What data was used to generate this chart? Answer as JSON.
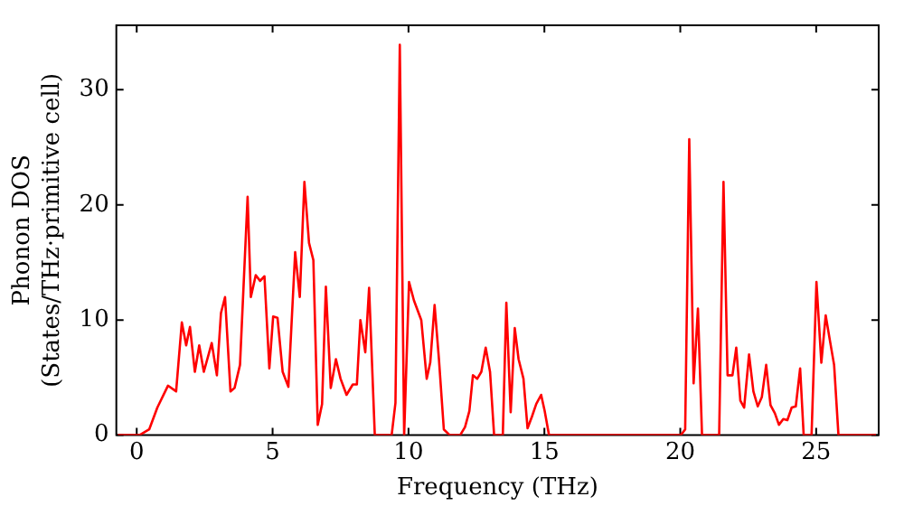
{
  "chart_data": {
    "type": "line",
    "xlabel": "Frequency (THz)",
    "ylabel": "Phonon DOS\n(States/THz·primitive cell)",
    "xlim": [
      -0.75,
      27.3
    ],
    "ylim": [
      0,
      35.6
    ],
    "xticks": [
      0,
      5,
      10,
      15,
      20,
      25
    ],
    "yticks": [
      0,
      10,
      20,
      30
    ],
    "grid": false,
    "legend": false,
    "marker": "none",
    "line_style": "solid",
    "x": [
      -0.69,
      0.1,
      0.46,
      0.76,
      1.15,
      1.45,
      1.66,
      1.82,
      1.96,
      2.14,
      2.3,
      2.47,
      2.76,
      2.95,
      3.1,
      3.25,
      3.45,
      3.6,
      3.8,
      4.08,
      4.2,
      4.38,
      4.54,
      4.7,
      4.88,
      5.02,
      5.18,
      5.37,
      5.58,
      5.83,
      6.0,
      6.17,
      6.34,
      6.5,
      6.66,
      6.82,
      6.96,
      7.14,
      7.33,
      7.5,
      7.72,
      7.95,
      8.1,
      8.23,
      8.41,
      8.55,
      8.76,
      9.38,
      9.52,
      9.68,
      9.84,
      10.02,
      10.2,
      10.47,
      10.67,
      10.8,
      10.96,
      11.12,
      11.3,
      11.52,
      11.9,
      12.08,
      12.24,
      12.37,
      12.53,
      12.68,
      12.84,
      13.0,
      13.15,
      13.47,
      13.6,
      13.76,
      13.91,
      14.05,
      14.23,
      14.38,
      14.54,
      14.7,
      14.88,
      15.01,
      15.17,
      20.02,
      20.18,
      20.33,
      20.49,
      20.65,
      20.8,
      21.43,
      21.59,
      21.74,
      21.92,
      22.06,
      22.21,
      22.35,
      22.53,
      22.69,
      22.85,
      23.0,
      23.16,
      23.32,
      23.48,
      23.63,
      23.79,
      23.94,
      24.1,
      24.25,
      24.41,
      24.54,
      24.83,
      25.01,
      25.19,
      25.35,
      25.5,
      25.66,
      25.82,
      27.2
    ],
    "series": [
      {
        "color": "#ff0000",
        "values": [
          0,
          0,
          0.5,
          2.4,
          4.3,
          3.8,
          9.8,
          7.8,
          9.4,
          5.5,
          7.8,
          5.5,
          8.0,
          5.2,
          10.6,
          12.0,
          3.8,
          4.1,
          6.1,
          20.7,
          12.0,
          13.9,
          13.4,
          13.8,
          5.8,
          10.3,
          10.2,
          5.5,
          4.2,
          15.9,
          12.0,
          22.0,
          16.7,
          15.2,
          0.9,
          2.7,
          12.9,
          4.1,
          6.6,
          4.9,
          3.5,
          4.4,
          4.4,
          10.0,
          7.2,
          12.8,
          0,
          0,
          2.8,
          33.9,
          0,
          13.3,
          11.7,
          10.0,
          4.9,
          6.3,
          11.3,
          6.6,
          0.5,
          0,
          0,
          0.7,
          2.1,
          5.2,
          4.9,
          5.5,
          7.6,
          5.5,
          0,
          0,
          11.5,
          2.0,
          9.3,
          6.6,
          4.9,
          0.6,
          1.6,
          2.7,
          3.5,
          2.1,
          0,
          0,
          0.5,
          25.7,
          4.5,
          11.0,
          0,
          0,
          22.0,
          5.2,
          5.2,
          7.6,
          3.0,
          2.4,
          7.0,
          3.8,
          2.5,
          3.3,
          6.1,
          2.6,
          1.9,
          0.9,
          1.4,
          1.3,
          2.4,
          2.5,
          5.8,
          0,
          0,
          13.3,
          6.3,
          10.4,
          8.3,
          6.1,
          0,
          0
        ]
      }
    ]
  }
}
